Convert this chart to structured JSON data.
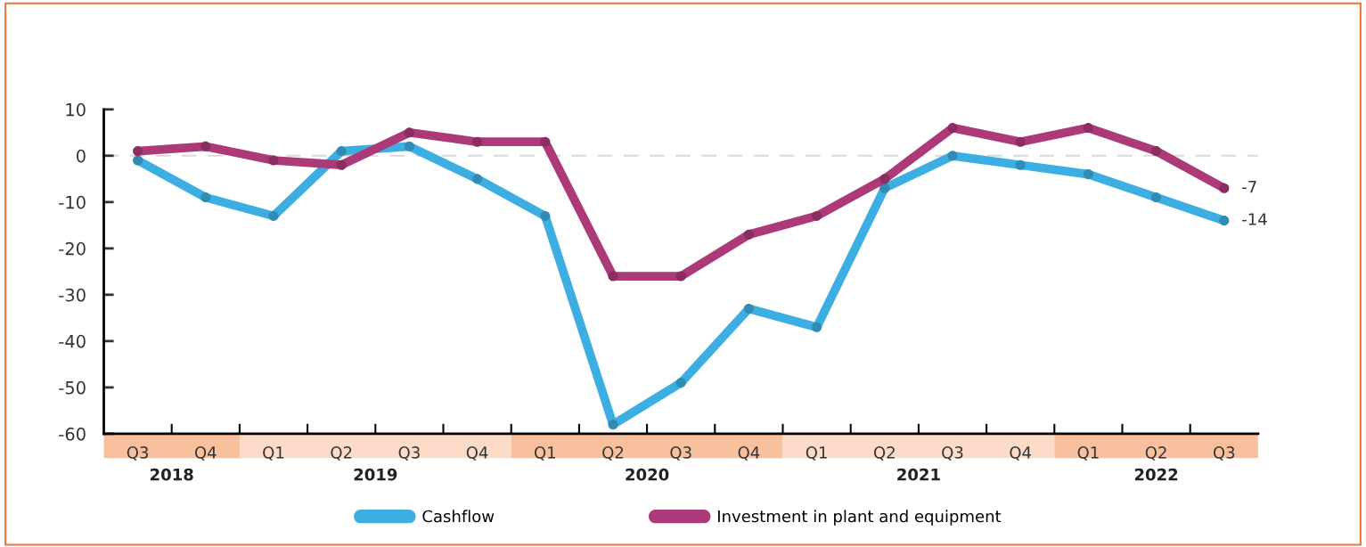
{
  "chart_data": {
    "type": "line",
    "categories": [
      "Q3",
      "Q4",
      "Q1",
      "Q2",
      "Q3",
      "Q4",
      "Q1",
      "Q2",
      "Q3",
      "Q4",
      "Q1",
      "Q2",
      "Q3",
      "Q4",
      "Q1",
      "Q2",
      "Q3"
    ],
    "series": [
      {
        "name": "Cashflow",
        "color": "#3daee2",
        "values": [
          -1,
          -9,
          -13,
          1,
          2,
          -5,
          -13,
          -58,
          -49,
          -33,
          -37,
          -7,
          0,
          -2,
          -4,
          -9,
          -14
        ],
        "value_labels": [
          null,
          null,
          null,
          null,
          null,
          null,
          null,
          null,
          null,
          null,
          null,
          null,
          null,
          null,
          null,
          null,
          "-14"
        ]
      },
      {
        "name": "Investment in plant and equipment",
        "color": "#ad3a78",
        "values": [
          1,
          2,
          -1,
          -2,
          5,
          3,
          3,
          -26,
          -26,
          -17,
          -13,
          -5,
          6,
          3,
          6,
          1,
          -7
        ],
        "value_labels": [
          null,
          null,
          null,
          null,
          null,
          null,
          null,
          null,
          null,
          null,
          null,
          null,
          null,
          null,
          null,
          null,
          "-7"
        ]
      }
    ],
    "annotations": [
      "2018",
      "2019",
      "2020",
      "2021",
      "2022"
    ],
    "ylim": [
      -60,
      10
    ],
    "yticks": [
      -60,
      -50,
      -40,
      -30,
      -20,
      -10,
      0,
      10
    ],
    "ref_lines": [
      {
        "axis": "y",
        "value": 0,
        "color": "#d9d9d9",
        "line_style": "dashed"
      }
    ],
    "grid": false,
    "legend": "bottom",
    "marker": "circle",
    "line_style": "solid"
  }
}
